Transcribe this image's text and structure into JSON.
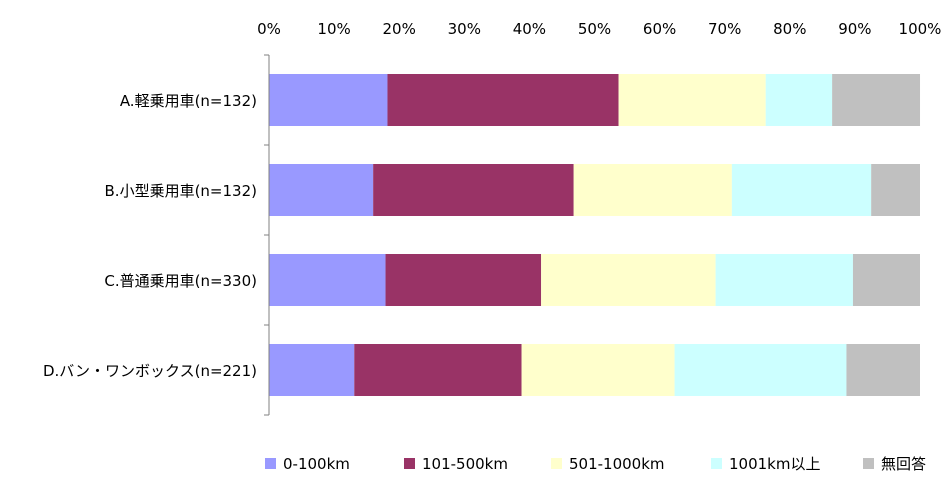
{
  "chart_data": {
    "type": "bar",
    "orientation": "horizontal",
    "stacked": "percent",
    "x_ticks": [
      "0%",
      "10%",
      "20%",
      "30%",
      "40%",
      "50%",
      "60%",
      "70%",
      "80%",
      "90%",
      "100%"
    ],
    "xlim": [
      0,
      100
    ],
    "categories": [
      "A.軽乗用車(n=132)",
      "B.小型乗用車(n=132)",
      "C.普通乗用車(n=330)",
      "D.バン・ワンボックス(n=221)"
    ],
    "series": [
      {
        "name": "0-100km",
        "color": "#9999ff",
        "values": [
          18.2,
          16.0,
          17.9,
          13.1
        ]
      },
      {
        "name": "101-500km",
        "color": "#993366",
        "values": [
          35.5,
          30.8,
          23.9,
          25.7
        ]
      },
      {
        "name": "501-1000km",
        "color": "#ffffcc",
        "values": [
          22.6,
          24.3,
          26.8,
          23.5
        ]
      },
      {
        "name": "1001km以上",
        "color": "#ccffff",
        "values": [
          10.2,
          21.4,
          21.1,
          26.4
        ]
      },
      {
        "name": "無回答",
        "color": "#c0c0c0",
        "values": [
          13.5,
          7.5,
          10.3,
          11.3
        ]
      }
    ],
    "legend_position": "bottom",
    "grid": false
  }
}
